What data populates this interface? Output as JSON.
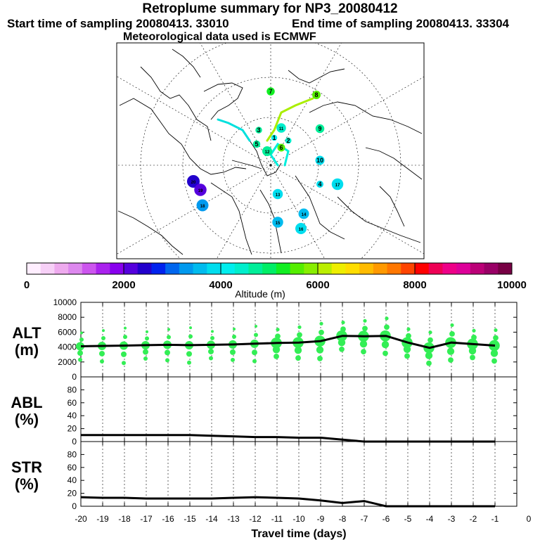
{
  "header": {
    "title": "Retroplume summary for NP3_20080412",
    "start": "Start time of sampling 20080413. 33010",
    "end": "End time of sampling 20080413. 33304",
    "met": "Meteorological data used is ECMWF"
  },
  "map": {
    "description": "Polar stereographic map, Northern Hemisphere",
    "markers": [
      {
        "label": "20",
        "alt": 2400
      },
      {
        "label": "19",
        "alt": 2200
      },
      {
        "label": "18",
        "alt": 3300
      },
      {
        "label": "17",
        "alt": 3800
      },
      {
        "label": "16",
        "alt": 3900
      },
      {
        "label": "15",
        "alt": 3700
      },
      {
        "label": "14",
        "alt": 3600
      },
      {
        "label": "13",
        "alt": 3900
      },
      {
        "label": "12",
        "alt": 4600
      },
      {
        "label": "11",
        "alt": 4500
      },
      {
        "label": "10",
        "alt": 3800
      },
      {
        "label": "9",
        "alt": 4600
      },
      {
        "label": "8",
        "alt": 5700
      },
      {
        "label": "7",
        "alt": 5200
      },
      {
        "label": "6",
        "alt": 5600
      },
      {
        "label": "5",
        "alt": 4700
      },
      {
        "label": "4",
        "alt": 3900
      },
      {
        "label": "3",
        "alt": 4600
      },
      {
        "label": "2",
        "alt": 4400
      },
      {
        "label": "1",
        "alt": 4200
      }
    ]
  },
  "colorbar": {
    "label": "Altitude (m)",
    "ticks": [
      "0",
      "2000",
      "4000",
      "6000",
      "8000",
      "10000"
    ],
    "colors": [
      "#ffeeff",
      "#f7d0f7",
      "#eeaaee",
      "#dd88ee",
      "#cc55ee",
      "#aa22ee",
      "#8800ee",
      "#5500dd",
      "#2200cc",
      "#0022ee",
      "#0066ee",
      "#0099ee",
      "#00bbee",
      "#00ddee",
      "#00eeee",
      "#00eecc",
      "#00ee99",
      "#00ee66",
      "#11ee22",
      "#55ee00",
      "#88ee00",
      "#bbee00",
      "#eeee00",
      "#ffdd00",
      "#ffbb00",
      "#ff9900",
      "#ff7700",
      "#ff4400",
      "#ff0000",
      "#ee0055",
      "#ee0088",
      "#dd0099",
      "#bb0077",
      "#990066",
      "#770044"
    ]
  },
  "chart_data": [
    {
      "type": "line",
      "panel": "ALT",
      "ylabel": "ALT\n(m)",
      "ylabel_line1": "ALT",
      "ylabel_line2": "(m)",
      "ylim": [
        0,
        10000
      ],
      "yticks": [
        "0",
        "2000",
        "4000",
        "6000",
        "8000",
        "10000"
      ],
      "x": [
        -20,
        -19,
        -18,
        -17,
        -16,
        -15,
        -14,
        -13,
        -12,
        -11,
        -10,
        -9,
        -8,
        -7,
        -6,
        -5,
        -4,
        -3,
        -2,
        -1
      ],
      "values": [
        4100,
        4150,
        4200,
        4250,
        4300,
        4250,
        4300,
        4350,
        4450,
        4550,
        4600,
        4800,
        5500,
        5450,
        5500,
        4600,
        3900,
        4600,
        4400,
        4200
      ]
    },
    {
      "type": "line",
      "panel": "ABL",
      "ylabel_line1": "ABL",
      "ylabel_line2": "(%)",
      "ylim": [
        0,
        100
      ],
      "yticks": [
        "0",
        "20",
        "40",
        "60",
        "80"
      ],
      "x": [
        -20,
        -19,
        -18,
        -17,
        -16,
        -15,
        -14,
        -13,
        -12,
        -11,
        -10,
        -9,
        -8,
        -7,
        -6,
        -5,
        -4,
        -3,
        -2,
        -1
      ],
      "values": [
        10,
        10,
        10,
        10,
        10,
        10,
        9,
        8,
        7,
        7,
        6,
        6,
        3,
        0,
        0,
        0,
        0,
        0,
        0,
        0
      ]
    },
    {
      "type": "line",
      "panel": "STR",
      "ylabel_line1": "STR",
      "ylabel_line2": "(%)",
      "ylim": [
        0,
        100
      ],
      "yticks": [
        "0",
        "20",
        "40",
        "60",
        "80"
      ],
      "xlabel": "Travel time (days)",
      "xticks": [
        "-20",
        "-19",
        "-18",
        "-17",
        "-16",
        "-15",
        "-14",
        "-13",
        "-12",
        "-11",
        "-10",
        "-9",
        "-8",
        "-7",
        "-6",
        "-5",
        "-4",
        "-3",
        "-2",
        "-1",
        "0"
      ],
      "x": [
        -20,
        -19,
        -18,
        -17,
        -16,
        -15,
        -14,
        -13,
        -12,
        -11,
        -10,
        -9,
        -8,
        -7,
        -6,
        -5,
        -4,
        -3,
        -2,
        -1
      ],
      "values": [
        14,
        13,
        13,
        12,
        12,
        12,
        12,
        13,
        14,
        13,
        12,
        9,
        5,
        8,
        0,
        0,
        0,
        0,
        0,
        0
      ]
    }
  ]
}
